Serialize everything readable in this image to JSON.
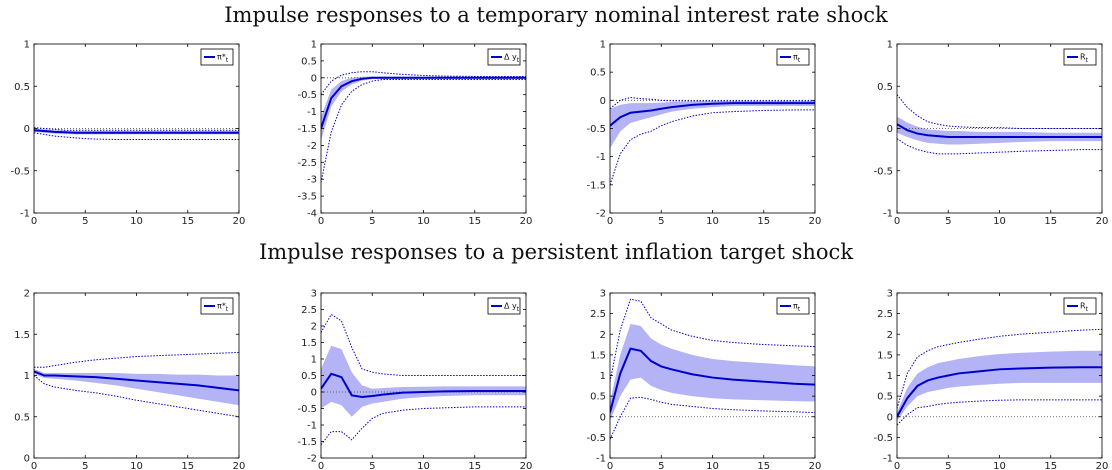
{
  "titles": {
    "row1": "Impulse responses to a temporary nominal interest rate shock",
    "row2": "Impulse responses to a persistent inflation target shock"
  },
  "colors": {
    "median": "#0000cc",
    "band": "#b3b3f5",
    "dotted": "#0000cc",
    "zero": "#444444",
    "axis": "#000000"
  },
  "chart_data": [
    {
      "type": "line",
      "row": 1,
      "col": 1,
      "legend": "π*t",
      "legend_sub": "t",
      "legend_main": "π*",
      "legend_placement": "top-right",
      "xlim": [
        0,
        20
      ],
      "xticks": [
        0,
        5,
        10,
        15,
        20
      ],
      "ylim": [
        -1,
        1
      ],
      "yticks": [
        -1,
        -0.5,
        0,
        0.5,
        1
      ],
      "x": [
        0,
        1,
        2,
        3,
        4,
        5,
        6,
        8,
        10,
        12,
        15,
        18,
        20
      ],
      "median": [
        -0.02,
        -0.03,
        -0.04,
        -0.045,
        -0.05,
        -0.05,
        -0.05,
        -0.05,
        -0.05,
        -0.05,
        -0.05,
        -0.05,
        -0.05
      ],
      "band_low": [
        -0.04,
        -0.05,
        -0.06,
        -0.065,
        -0.07,
        -0.07,
        -0.07,
        -0.07,
        -0.07,
        -0.07,
        -0.07,
        -0.07,
        -0.07
      ],
      "band_high": [
        0.0,
        -0.01,
        -0.02,
        -0.025,
        -0.03,
        -0.03,
        -0.03,
        -0.03,
        -0.03,
        -0.03,
        -0.03,
        -0.03,
        -0.03
      ],
      "dotted_low": [
        -0.05,
        -0.07,
        -0.09,
        -0.1,
        -0.11,
        -0.12,
        -0.125,
        -0.13,
        -0.13,
        -0.13,
        -0.13,
        -0.13,
        -0.13
      ],
      "dotted_high": [
        0.01,
        0.0,
        -0.01,
        -0.02,
        -0.02,
        -0.02,
        -0.02,
        -0.02,
        -0.02,
        -0.02,
        -0.02,
        -0.02,
        -0.02
      ]
    },
    {
      "type": "line",
      "row": 1,
      "col": 2,
      "legend": "Δ yt",
      "legend_main": "Δ y",
      "legend_sub": "t",
      "legend_placement": "top-right",
      "xlim": [
        0,
        20
      ],
      "xticks": [
        0,
        5,
        10,
        15,
        20
      ],
      "ylim": [
        -4,
        1
      ],
      "yticks": [
        -4,
        -3.5,
        -3,
        -2.5,
        -2,
        -1.5,
        -1,
        -0.5,
        0,
        0.5,
        1
      ],
      "x": [
        0,
        1,
        2,
        3,
        4,
        5,
        6,
        8,
        10,
        12,
        15,
        18,
        20
      ],
      "median": [
        -1.5,
        -0.6,
        -0.25,
        -0.1,
        -0.03,
        0.0,
        0.0,
        0.0,
        0.0,
        0.0,
        0.0,
        0.0,
        0.0
      ],
      "band_low": [
        -1.85,
        -0.85,
        -0.4,
        -0.2,
        -0.08,
        -0.04,
        -0.03,
        -0.03,
        -0.03,
        -0.03,
        -0.03,
        -0.03,
        -0.03
      ],
      "band_high": [
        -1.15,
        -0.35,
        -0.1,
        0.0,
        0.03,
        0.04,
        0.04,
        0.03,
        0.03,
        0.03,
        0.03,
        0.03,
        0.03
      ],
      "dotted_low": [
        -3.1,
        -1.6,
        -0.8,
        -0.4,
        -0.2,
        -0.1,
        -0.05,
        -0.05,
        -0.05,
        -0.05,
        -0.05,
        -0.05,
        -0.05
      ],
      "dotted_high": [
        -0.5,
        -0.1,
        0.08,
        0.15,
        0.18,
        0.18,
        0.15,
        0.1,
        0.07,
        0.05,
        0.04,
        0.04,
        0.04
      ]
    },
    {
      "type": "line",
      "row": 1,
      "col": 3,
      "legend": "πt",
      "legend_main": "π",
      "legend_sub": "t",
      "legend_placement": "top-right",
      "xlim": [
        0,
        20
      ],
      "xticks": [
        0,
        5,
        10,
        15,
        20
      ],
      "ylim": [
        -2,
        1
      ],
      "yticks": [
        -2,
        -1.5,
        -1,
        -0.5,
        0,
        0.5,
        1
      ],
      "x": [
        0,
        1,
        2,
        3,
        4,
        5,
        6,
        8,
        10,
        12,
        15,
        18,
        20
      ],
      "median": [
        -0.45,
        -0.3,
        -0.22,
        -0.2,
        -0.18,
        -0.15,
        -0.12,
        -0.08,
        -0.06,
        -0.05,
        -0.05,
        -0.05,
        -0.05
      ],
      "band_low": [
        -0.85,
        -0.55,
        -0.4,
        -0.35,
        -0.3,
        -0.25,
        -0.2,
        -0.15,
        -0.12,
        -0.1,
        -0.1,
        -0.1,
        -0.1
      ],
      "band_high": [
        -0.15,
        -0.08,
        -0.05,
        -0.05,
        -0.05,
        -0.04,
        -0.03,
        -0.02,
        -0.01,
        -0.01,
        -0.01,
        -0.01,
        -0.01
      ],
      "dotted_low": [
        -1.5,
        -0.95,
        -0.7,
        -0.6,
        -0.55,
        -0.45,
        -0.38,
        -0.28,
        -0.22,
        -0.2,
        -0.18,
        -0.17,
        -0.17
      ],
      "dotted_high": [
        -0.15,
        0.0,
        0.05,
        0.03,
        0.02,
        0.0,
        -0.01,
        -0.01,
        -0.01,
        -0.01,
        -0.01,
        -0.01,
        -0.01
      ]
    },
    {
      "type": "line",
      "row": 1,
      "col": 4,
      "legend": "Rt",
      "legend_main": "R",
      "legend_sub": "t",
      "legend_placement": "top-right",
      "xlim": [
        0,
        20
      ],
      "xticks": [
        0,
        5,
        10,
        15,
        20
      ],
      "ylim": [
        -1,
        1
      ],
      "yticks": [
        -1,
        -0.5,
        0,
        0.5,
        1
      ],
      "x": [
        0,
        1,
        2,
        3,
        4,
        5,
        6,
        8,
        10,
        12,
        15,
        18,
        20
      ],
      "median": [
        0.05,
        -0.02,
        -0.06,
        -0.08,
        -0.09,
        -0.1,
        -0.1,
        -0.1,
        -0.1,
        -0.1,
        -0.1,
        -0.1,
        -0.1
      ],
      "band_low": [
        -0.05,
        -0.1,
        -0.14,
        -0.17,
        -0.18,
        -0.19,
        -0.19,
        -0.18,
        -0.17,
        -0.16,
        -0.15,
        -0.15,
        -0.15
      ],
      "band_high": [
        0.14,
        0.07,
        0.02,
        -0.01,
        -0.02,
        -0.03,
        -0.03,
        -0.04,
        -0.04,
        -0.04,
        -0.05,
        -0.05,
        -0.05
      ],
      "dotted_low": [
        -0.12,
        -0.2,
        -0.25,
        -0.28,
        -0.3,
        -0.3,
        -0.3,
        -0.29,
        -0.28,
        -0.27,
        -0.26,
        -0.25,
        -0.25
      ],
      "dotted_high": [
        0.4,
        0.25,
        0.15,
        0.08,
        0.05,
        0.03,
        0.02,
        0.01,
        0.01,
        0.0,
        0.0,
        0.0,
        0.0
      ]
    },
    {
      "type": "line",
      "row": 2,
      "col": 1,
      "legend": "π*t",
      "legend_main": "π*",
      "legend_sub": "t",
      "legend_placement": "top-right",
      "xlim": [
        0,
        20
      ],
      "xticks": [
        0,
        5,
        10,
        15,
        20
      ],
      "ylim": [
        0,
        2
      ],
      "yticks": [
        0,
        0.5,
        1,
        1.5,
        2
      ],
      "x": [
        0,
        1,
        2,
        4,
        6,
        8,
        10,
        12,
        14,
        16,
        18,
        20
      ],
      "median": [
        1.05,
        1.0,
        1.0,
        0.99,
        0.98,
        0.96,
        0.94,
        0.92,
        0.9,
        0.88,
        0.85,
        0.82
      ],
      "band_low": [
        1.02,
        0.97,
        0.96,
        0.94,
        0.91,
        0.88,
        0.84,
        0.8,
        0.76,
        0.72,
        0.68,
        0.64
      ],
      "band_high": [
        1.08,
        1.03,
        1.03,
        1.03,
        1.03,
        1.03,
        1.02,
        1.02,
        1.01,
        1.01,
        1.0,
        1.0
      ],
      "dotted_low": [
        1.0,
        0.9,
        0.86,
        0.82,
        0.79,
        0.75,
        0.7,
        0.66,
        0.62,
        0.58,
        0.54,
        0.5
      ],
      "dotted_high": [
        1.1,
        1.1,
        1.12,
        1.16,
        1.19,
        1.21,
        1.23,
        1.24,
        1.25,
        1.26,
        1.27,
        1.28
      ]
    },
    {
      "type": "line",
      "row": 2,
      "col": 2,
      "legend": "Δ yt",
      "legend_main": "Δ y",
      "legend_sub": "t",
      "legend_placement": "top-right",
      "xlim": [
        0,
        20
      ],
      "xticks": [
        0,
        5,
        10,
        15,
        20
      ],
      "ylim": [
        -2,
        3
      ],
      "yticks": [
        -2,
        -1.5,
        -1,
        -0.5,
        0,
        0.5,
        1,
        1.5,
        2,
        2.5,
        3
      ],
      "x": [
        0,
        1,
        2,
        3,
        4,
        5,
        6,
        8,
        10,
        12,
        15,
        18,
        20
      ],
      "median": [
        0.1,
        0.55,
        0.45,
        -0.1,
        -0.15,
        -0.12,
        -0.08,
        -0.02,
        0.0,
        0.02,
        0.03,
        0.03,
        0.03
      ],
      "band_low": [
        -0.5,
        -0.3,
        -0.4,
        -0.75,
        -0.45,
        -0.35,
        -0.3,
        -0.2,
        -0.15,
        -0.12,
        -0.1,
        -0.1,
        -0.1
      ],
      "band_high": [
        0.7,
        1.4,
        1.3,
        0.6,
        0.2,
        0.1,
        0.12,
        0.15,
        0.16,
        0.17,
        0.17,
        0.17,
        0.17
      ],
      "dotted_low": [
        -1.6,
        -1.2,
        -1.2,
        -1.45,
        -1.1,
        -0.8,
        -0.65,
        -0.55,
        -0.5,
        -0.48,
        -0.45,
        -0.45,
        -0.45
      ],
      "dotted_high": [
        1.8,
        2.35,
        2.15,
        1.35,
        0.7,
        0.6,
        0.55,
        0.5,
        0.5,
        0.5,
        0.5,
        0.5,
        0.5
      ]
    },
    {
      "type": "line",
      "row": 2,
      "col": 3,
      "legend": "πt",
      "legend_main": "π",
      "legend_sub": "t",
      "legend_placement": "top-right",
      "xlim": [
        0,
        20
      ],
      "xticks": [
        0,
        5,
        10,
        15,
        20
      ],
      "ylim": [
        -1,
        3
      ],
      "yticks": [
        -1,
        -0.5,
        0,
        0.5,
        1,
        1.5,
        2,
        2.5,
        3
      ],
      "x": [
        0,
        1,
        2,
        3,
        4,
        5,
        6,
        8,
        10,
        12,
        15,
        18,
        20
      ],
      "median": [
        0.1,
        1.05,
        1.65,
        1.6,
        1.35,
        1.22,
        1.15,
        1.03,
        0.95,
        0.9,
        0.85,
        0.8,
        0.78
      ],
      "band_low": [
        -0.1,
        0.5,
        0.9,
        0.95,
        0.75,
        0.65,
        0.58,
        0.5,
        0.45,
        0.42,
        0.4,
        0.38,
        0.37
      ],
      "band_high": [
        0.35,
        1.5,
        2.25,
        2.2,
        1.9,
        1.75,
        1.65,
        1.5,
        1.4,
        1.35,
        1.3,
        1.25,
        1.22
      ],
      "dotted_low": [
        -0.55,
        0.0,
        0.45,
        0.47,
        0.42,
        0.35,
        0.3,
        0.25,
        0.2,
        0.17,
        0.14,
        0.12,
        0.1
      ],
      "dotted_high": [
        0.85,
        2.1,
        2.85,
        2.8,
        2.4,
        2.25,
        2.1,
        1.95,
        1.85,
        1.8,
        1.75,
        1.72,
        1.7
      ]
    },
    {
      "type": "line",
      "row": 2,
      "col": 4,
      "legend": "Rt",
      "legend_main": "R",
      "legend_sub": "t",
      "legend_placement": "top-right",
      "xlim": [
        0,
        20
      ],
      "xticks": [
        0,
        5,
        10,
        15,
        20
      ],
      "ylim": [
        -1,
        3
      ],
      "yticks": [
        -1,
        -0.5,
        0,
        0.5,
        1,
        1.5,
        2,
        2.5,
        3
      ],
      "x": [
        0,
        1,
        2,
        3,
        4,
        5,
        6,
        8,
        10,
        12,
        15,
        18,
        20
      ],
      "median": [
        0.0,
        0.45,
        0.75,
        0.88,
        0.95,
        1.0,
        1.05,
        1.1,
        1.15,
        1.17,
        1.19,
        1.2,
        1.2
      ],
      "band_low": [
        -0.1,
        0.25,
        0.5,
        0.6,
        0.65,
        0.7,
        0.73,
        0.77,
        0.8,
        0.82,
        0.82,
        0.82,
        0.82
      ],
      "band_high": [
        0.1,
        0.7,
        1.05,
        1.2,
        1.3,
        1.35,
        1.4,
        1.47,
        1.52,
        1.55,
        1.58,
        1.6,
        1.6
      ],
      "dotted_low": [
        -0.2,
        0.05,
        0.22,
        0.25,
        0.3,
        0.33,
        0.35,
        0.38,
        0.4,
        0.41,
        0.41,
        0.41,
        0.41
      ],
      "dotted_high": [
        0.2,
        1.05,
        1.45,
        1.6,
        1.7,
        1.75,
        1.8,
        1.88,
        1.95,
        2.0,
        2.05,
        2.1,
        2.12
      ]
    }
  ]
}
